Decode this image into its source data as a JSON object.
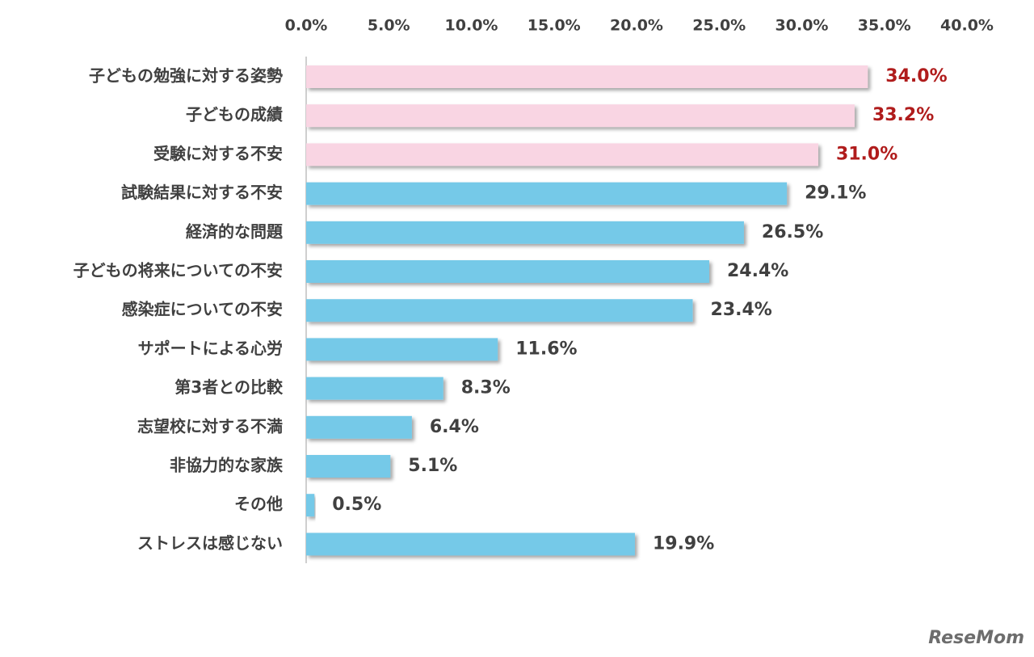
{
  "chart_data": {
    "type": "hbar",
    "categories": [
      "子どもの勉強に対する姿勢",
      "子どもの成績",
      "受験に対する不安",
      "試験結果に対する不安",
      "経済的な問題",
      "子どもの将来についての不安",
      "感染症についての不安",
      "サポートによる心労",
      "第3者との比較",
      "志望校に対する不満",
      "非協力的な家族",
      "その他",
      "ストレスは感じない"
    ],
    "values": [
      34.0,
      33.2,
      31.0,
      29.1,
      26.5,
      24.4,
      23.4,
      11.6,
      8.3,
      6.4,
      5.1,
      0.5,
      19.9
    ],
    "value_labels": [
      "34.0%",
      "33.2%",
      "31.0%",
      "29.1%",
      "26.5%",
      "24.4%",
      "23.4%",
      "11.6%",
      "8.3%",
      "6.4%",
      "5.1%",
      "0.5%",
      "19.9%"
    ],
    "colors": [
      "#f9d5e3",
      "#f9d5e3",
      "#f9d5e3",
      "#75c9e8",
      "#75c9e8",
      "#75c9e8",
      "#75c9e8",
      "#75c9e8",
      "#75c9e8",
      "#75c9e8",
      "#75c9e8",
      "#75c9e8",
      "#75c9e8"
    ],
    "value_label_colors": [
      "#b01c1c",
      "#b01c1c",
      "#b01c1c",
      "#404040",
      "#404040",
      "#404040",
      "#404040",
      "#404040",
      "#404040",
      "#404040",
      "#404040",
      "#404040",
      "#404040"
    ],
    "xlim": [
      0,
      40
    ],
    "xticks": [
      {
        "value": 0,
        "label": "0.0%"
      },
      {
        "value": 5,
        "label": "5.0%"
      },
      {
        "value": 10,
        "label": "10.0%"
      },
      {
        "value": 15,
        "label": "15.0%"
      },
      {
        "value": 20,
        "label": "20.0%"
      },
      {
        "value": 25,
        "label": "25.0%"
      },
      {
        "value": 30,
        "label": "30.0%"
      },
      {
        "value": 35,
        "label": "35.0%"
      },
      {
        "value": 40,
        "label": "40.0%"
      }
    ],
    "grid": false,
    "watermark": "ReseMom"
  }
}
